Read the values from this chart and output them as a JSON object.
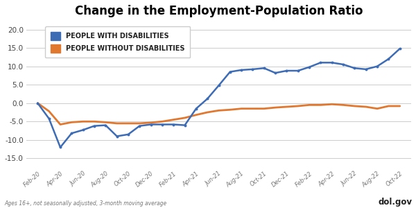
{
  "title": "Change in the Employment-Population Ratio",
  "footnote": "Ages 16+, not seasonally adjusted, 3-month moving average",
  "watermark": "dol.gov",
  "legend": [
    "PEOPLE WITH DISABILITIES",
    "PEOPLE WITHOUT DISABILITIES"
  ],
  "colors": [
    "#3d6cb5",
    "#e07830"
  ],
  "x_labels": [
    "Feb-20",
    "Apr-20",
    "Jun-20",
    "Aug-20",
    "Oct-20",
    "Dec-20",
    "Feb-21",
    "Apr-21",
    "Jun-21",
    "Aug-21",
    "Oct-21",
    "Dec-21",
    "Feb-22",
    "Apr-22",
    "Jun-22",
    "Aug-22",
    "Oct-22"
  ],
  "ylim": [
    -17.5,
    22.5
  ],
  "yticks": [
    -15.0,
    -10.0,
    -5.0,
    0.0,
    5.0,
    10.0,
    15.0,
    20.0
  ],
  "disabilities": [
    0.0,
    -4.2,
    -12.0,
    -8.2,
    -7.3,
    -6.2,
    -6.0,
    -9.0,
    -8.5,
    -6.2,
    -5.8,
    -5.8,
    -5.8,
    -6.0,
    -1.5,
    1.2,
    4.8,
    8.5,
    9.0,
    9.2,
    9.5,
    8.2,
    8.8,
    8.8,
    9.8,
    11.0,
    11.0,
    10.5,
    9.5,
    9.2,
    10.0,
    12.0,
    14.8
  ],
  "no_disabilities": [
    0.0,
    -2.2,
    -5.8,
    -5.2,
    -5.0,
    -5.0,
    -5.2,
    -5.5,
    -5.5,
    -5.5,
    -5.3,
    -5.0,
    -4.5,
    -4.0,
    -3.2,
    -2.5,
    -2.0,
    -1.8,
    -1.5,
    -1.5,
    -1.5,
    -1.2,
    -1.0,
    -0.8,
    -0.5,
    -0.5,
    -0.3,
    -0.5,
    -0.8,
    -1.0,
    -1.5,
    -0.8,
    -0.8
  ],
  "n_dis": 33,
  "n_nodis": 33
}
